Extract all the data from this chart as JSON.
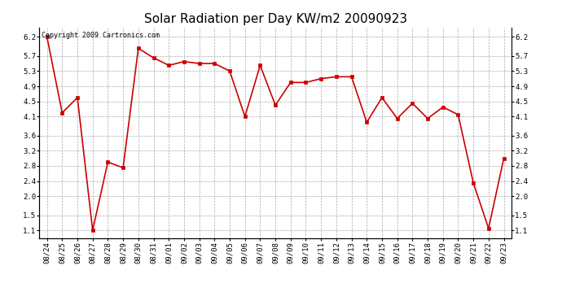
{
  "title": "Solar Radiation per Day KW/m2 20090923",
  "copyright_text": "Copyright 2009 Cartronics.com",
  "dates": [
    "08/24",
    "08/25",
    "08/26",
    "08/27",
    "08/28",
    "08/29",
    "08/30",
    "08/31",
    "09/01",
    "09/02",
    "09/03",
    "09/04",
    "09/05",
    "09/06",
    "09/07",
    "09/08",
    "09/09",
    "09/10",
    "09/11",
    "09/12",
    "09/13",
    "09/14",
    "09/15",
    "09/16",
    "09/17",
    "09/18",
    "09/19",
    "09/20",
    "09/21",
    "09/22",
    "09/23"
  ],
  "values": [
    6.2,
    4.2,
    4.6,
    1.1,
    2.9,
    2.75,
    5.9,
    5.65,
    5.45,
    5.55,
    5.5,
    5.5,
    5.3,
    4.1,
    5.45,
    4.4,
    5.0,
    5.0,
    5.1,
    5.15,
    5.15,
    3.95,
    4.6,
    4.05,
    4.45,
    4.05,
    4.35,
    4.15,
    2.35,
    1.15,
    3.0
  ],
  "line_color": "#cc0000",
  "marker_color": "#cc0000",
  "marker_style": "s",
  "marker_size": 2.5,
  "line_width": 1.2,
  "background_color": "#ffffff",
  "grid_color": "#aaaaaa",
  "ylim": [
    0.9,
    6.45
  ],
  "yticks": [
    1.1,
    1.5,
    2.0,
    2.4,
    2.8,
    3.2,
    3.6,
    4.1,
    4.5,
    4.9,
    5.3,
    5.7,
    6.2
  ],
  "title_fontsize": 11,
  "tick_fontsize": 6.5,
  "copyright_fontsize": 6
}
